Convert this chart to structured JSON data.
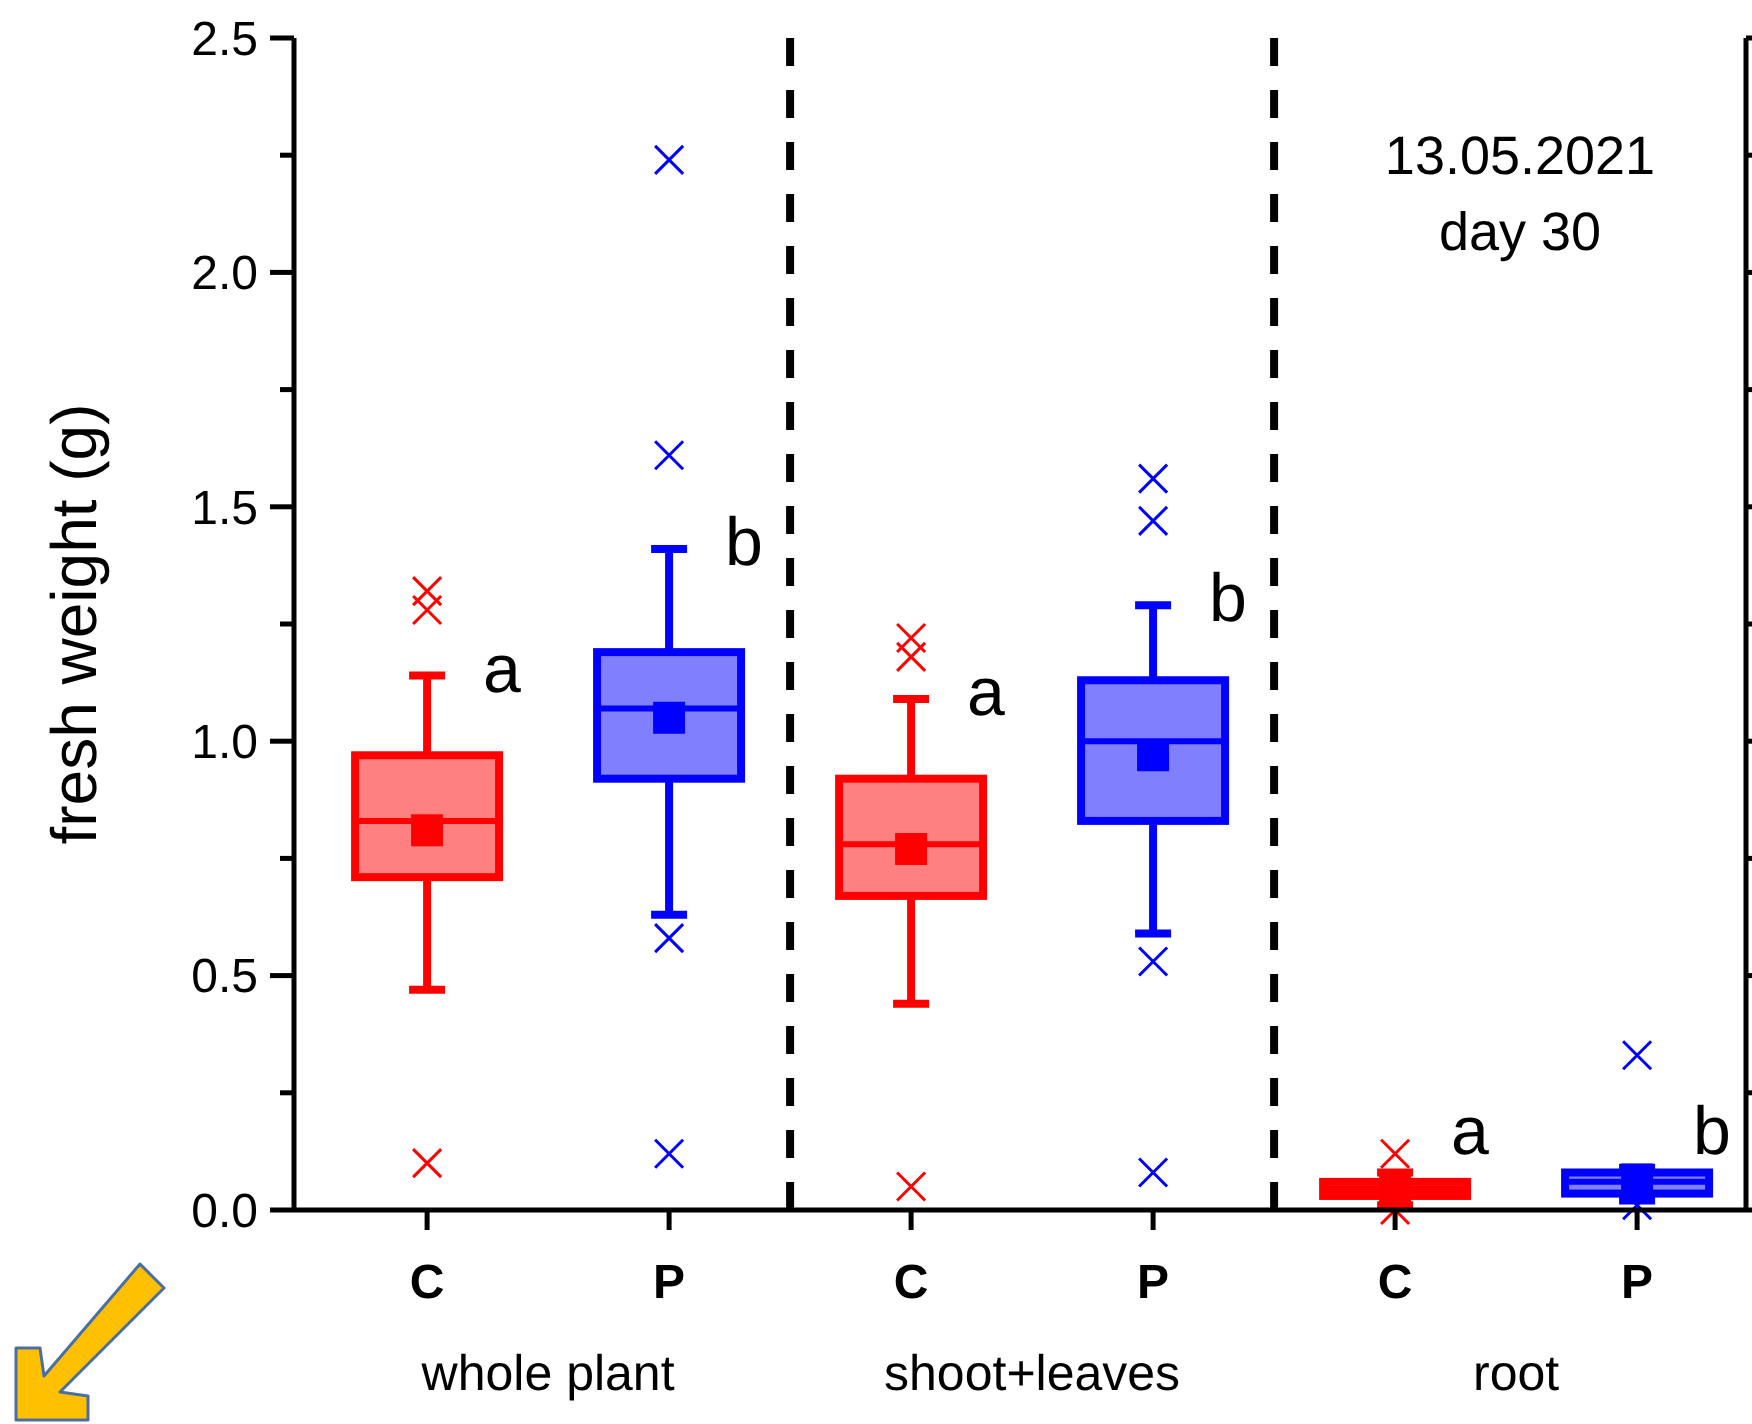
{
  "chart_data": {
    "type": "box",
    "ylabel": "fresh weight (g)",
    "categories": [
      "C",
      "P",
      "C",
      "P",
      "C",
      "P"
    ],
    "colors": [
      "#ff0000",
      "#0000ff",
      "#ff0000",
      "#0000ff",
      "#ff0000",
      "#0000ff"
    ],
    "boxes": [
      {
        "low": 0.47,
        "q1": 0.71,
        "median": 0.83,
        "q3": 0.97,
        "high": 1.14,
        "mean": 0.81,
        "outliers": [
          0.1,
          1.28,
          1.32
        ]
      },
      {
        "low": 0.63,
        "q1": 0.92,
        "median": 1.07,
        "q3": 1.19,
        "high": 1.41,
        "mean": 1.05,
        "outliers": [
          0.12,
          0.58,
          1.61,
          2.24
        ]
      },
      {
        "low": 0.44,
        "q1": 0.67,
        "median": 0.78,
        "q3": 0.92,
        "high": 1.09,
        "mean": 0.77,
        "outliers": [
          0.05,
          1.18,
          1.22
        ]
      },
      {
        "low": 0.59,
        "q1": 0.83,
        "median": 1.0,
        "q3": 1.13,
        "high": 1.29,
        "mean": 0.97,
        "outliers": [
          0.08,
          0.53,
          1.47,
          1.56
        ]
      },
      {
        "low": 0.01,
        "q1": 0.03,
        "median": 0.045,
        "q3": 0.06,
        "high": 0.08,
        "mean": 0.05,
        "outliers": [
          0.0,
          0.12
        ]
      },
      {
        "low": 0.02,
        "q1": 0.035,
        "median": 0.06,
        "q3": 0.08,
        "high": 0.09,
        "mean": 0.065,
        "outliers": [
          0.01,
          0.33
        ]
      }
    ],
    "ylim": [
      0,
      2.5
    ],
    "yticks": [
      {
        "value": 0,
        "label": "0.0"
      },
      {
        "value": 0.25,
        "label": null
      },
      {
        "value": 0.5,
        "label": "0.5"
      },
      {
        "value": 0.75,
        "label": null
      },
      {
        "value": 1,
        "label": "1.0"
      },
      {
        "value": 1.25,
        "label": null
      },
      {
        "value": 1.5,
        "label": "1.5"
      },
      {
        "value": 1.75,
        "label": null
      },
      {
        "value": 2,
        "label": "2.0"
      },
      {
        "value": 2.25,
        "label": null
      },
      {
        "value": 2.5,
        "label": "2.5"
      }
    ],
    "marker": "cross",
    "annotations": [
      "a",
      "b",
      "a",
      "b",
      "a",
      "b",
      "whole plant",
      "shoot+leaves",
      "root",
      "13.05.2021\nday 30"
    ],
    "grid": false
  }
}
